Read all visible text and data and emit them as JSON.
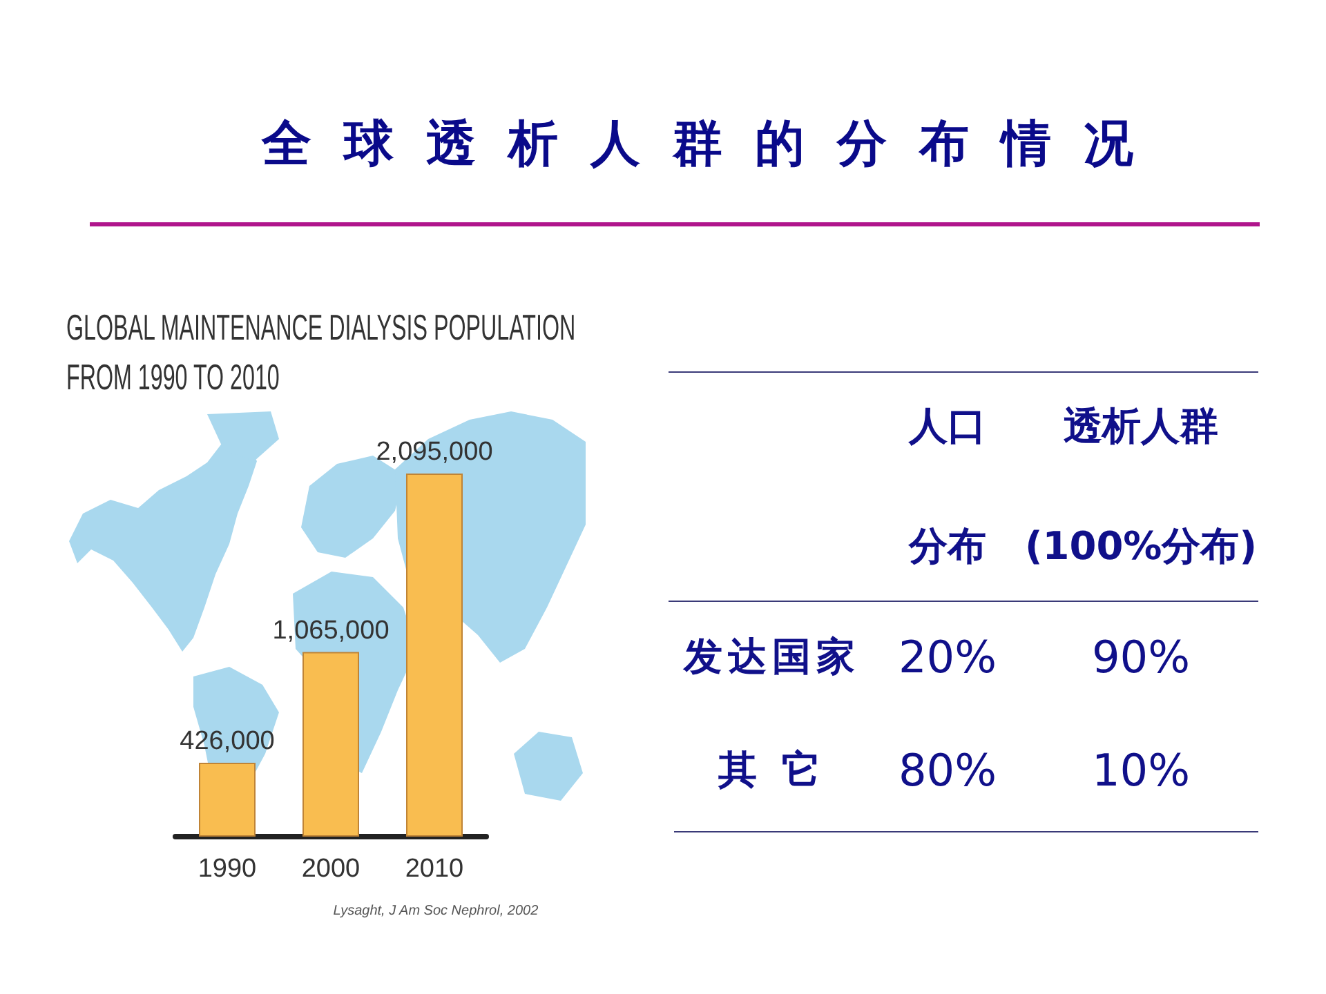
{
  "chart_data": [
    {
      "type": "bar",
      "title": "全球透析人群的分布情况",
      "subtitle": "GLOBAL MAINTENANCE DIALYSIS POPULATION FROM 1990 TO 2010",
      "categories": [
        "1990",
        "2000",
        "2010"
      ],
      "values": [
        426000,
        1065000,
        2095000
      ],
      "value_labels": [
        "426,000",
        "1,065,000",
        "2,095,000"
      ],
      "color": "#f9bd50",
      "annotations": [
        "Lysaght, J Am Soc Nephrol, 2002"
      ]
    },
    {
      "type": "heatmap",
      "categories": [
        "人口分布",
        "透析人群(100%分布)"
      ],
      "y_categories": [
        "发达国家",
        "其 它"
      ],
      "cells": [
        [
          20,
          90
        ],
        [
          80,
          10
        ]
      ],
      "cell_labels": [
        [
          "20%",
          "90%"
        ],
        [
          "80%",
          "10%"
        ]
      ]
    }
  ]
}
